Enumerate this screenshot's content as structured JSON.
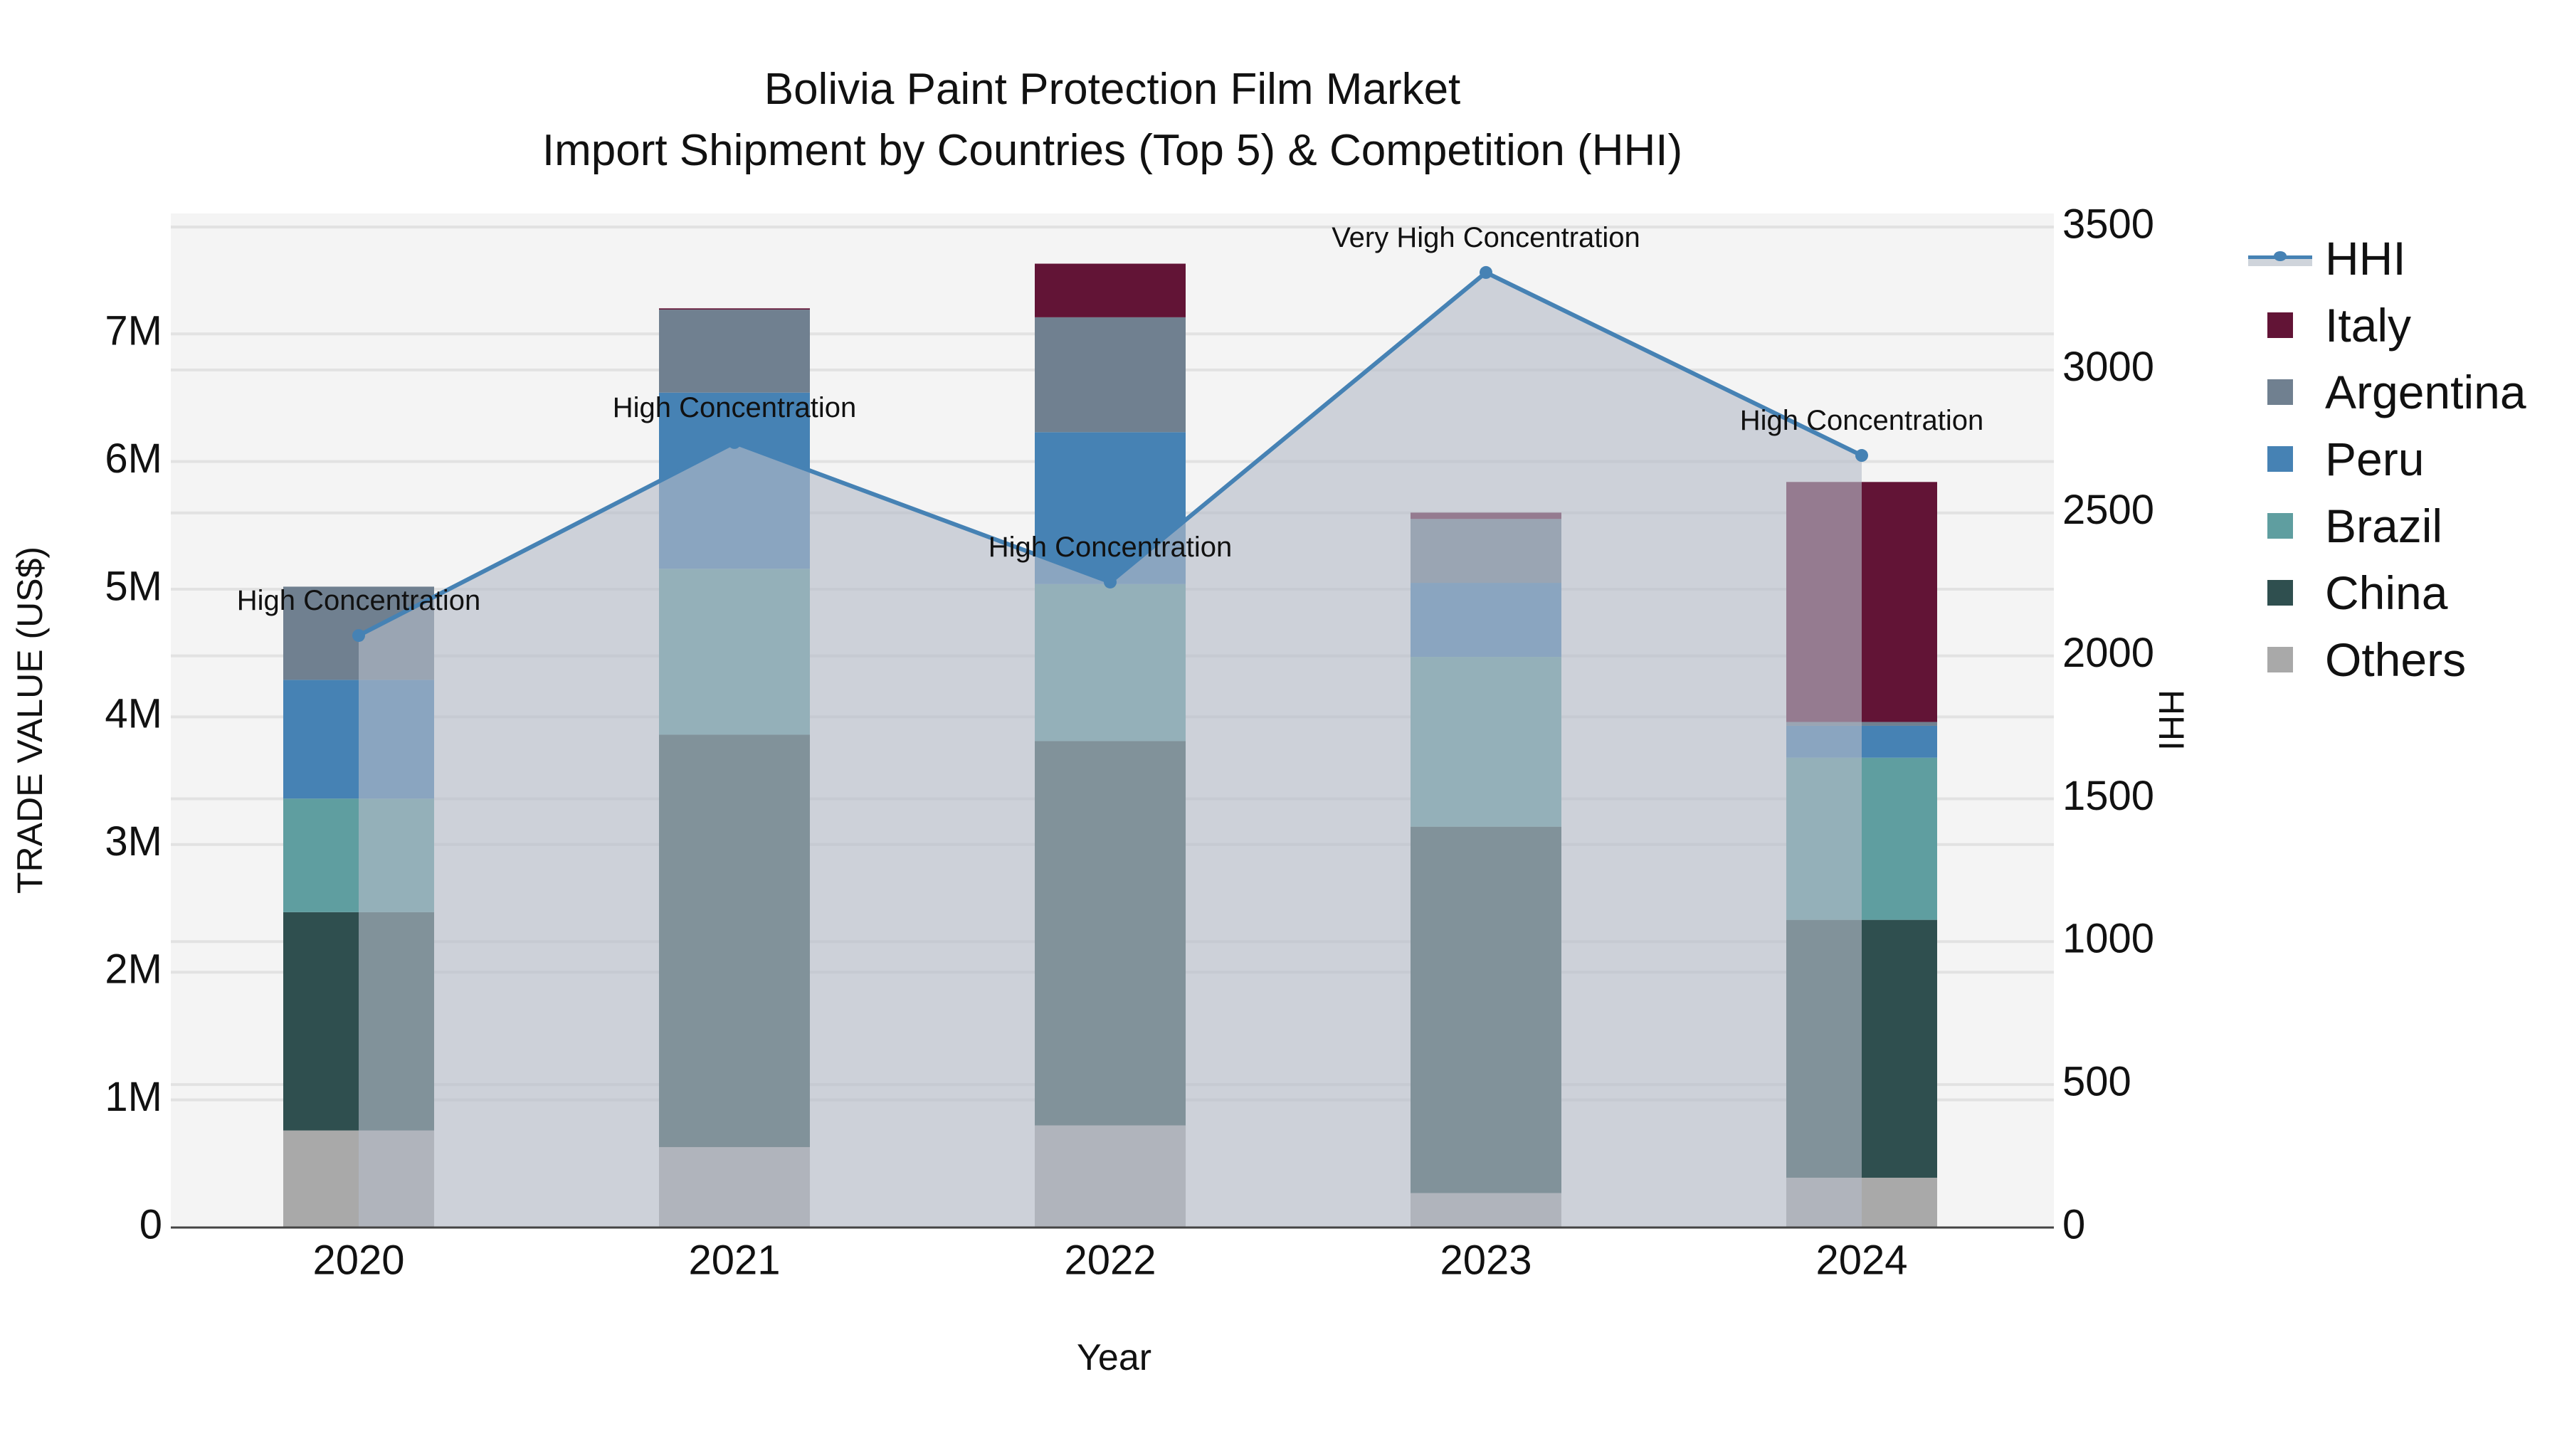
{
  "chart_title": {
    "line1": "Bolivia Paint Protection Film Market",
    "line2": "Import Shipment by Countries (Top 5) & Competition (HHI)"
  },
  "axes": {
    "x_title": "Year",
    "y_left_title": "TRADE VALUE (US$)",
    "y_right_title": "HHI",
    "y_left_ticks": [
      "0",
      "1M",
      "2M",
      "3M",
      "4M",
      "5M",
      "6M",
      "7M"
    ],
    "y_right_ticks": [
      "0",
      "500",
      "1000",
      "1500",
      "2000",
      "2500",
      "3000",
      "3500"
    ]
  },
  "legend": {
    "items": [
      {
        "label": "HHI",
        "type": "line",
        "color": "#4682b4"
      },
      {
        "label": "Italy",
        "type": "bar",
        "color": "#621436"
      },
      {
        "label": "Argentina",
        "type": "bar",
        "color": "#708090"
      },
      {
        "label": "Peru",
        "type": "bar",
        "color": "#4682b4"
      },
      {
        "label": "Brazil",
        "type": "bar",
        "color": "#5f9ea0"
      },
      {
        "label": "China",
        "type": "bar",
        "color": "#2f4f4f"
      },
      {
        "label": "Others",
        "type": "bar",
        "color": "#a9a9a9"
      }
    ]
  },
  "colors": {
    "plot_bg": "#f4f4f4",
    "grid": "#e2e2e2",
    "hhi_line": "#4682b4",
    "hhi_fill": "rgba(180,188,200,0.62)",
    "axis_line": "#444444"
  },
  "chart_data": {
    "type": "bar",
    "stacked": true,
    "title": "Bolivia Paint Protection Film Market — Import Shipment by Countries (Top 5) & Competition (HHI)",
    "xlabel": "Year",
    "ylabel": "TRADE VALUE (US$)",
    "y2label": "HHI",
    "categories": [
      "2020",
      "2021",
      "2022",
      "2023",
      "2024"
    ],
    "ylim": [
      0,
      7.9
    ],
    "ylim_units": "millions US$",
    "y2lim": [
      0,
      3550
    ],
    "grid": true,
    "legend_position": "right",
    "series": [
      {
        "name": "Others",
        "type": "bar",
        "color": "#a9a9a9",
        "values": [
          0.76,
          0.63,
          0.8,
          0.27,
          0.39
        ]
      },
      {
        "name": "China",
        "type": "bar",
        "color": "#2f4f4f",
        "values": [
          1.71,
          3.23,
          3.01,
          2.87,
          2.02
        ]
      },
      {
        "name": "Brazil",
        "type": "bar",
        "color": "#5f9ea0",
        "values": [
          0.89,
          1.3,
          1.23,
          1.33,
          1.27
        ]
      },
      {
        "name": "Peru",
        "type": "bar",
        "color": "#4682b4",
        "values": [
          0.93,
          1.38,
          1.19,
          0.58,
          0.25
        ]
      },
      {
        "name": "Argentina",
        "type": "bar",
        "color": "#708090",
        "values": [
          0.73,
          0.65,
          0.9,
          0.5,
          0.03
        ]
      },
      {
        "name": "Italy",
        "type": "bar",
        "color": "#621436",
        "values": [
          0.0,
          0.01,
          0.42,
          0.05,
          1.88
        ]
      },
      {
        "name": "HHI",
        "type": "area-line",
        "axis": "right",
        "color": "#4682b4",
        "values": [
          2071,
          2746,
          2258,
          3341,
          2701
        ]
      }
    ],
    "annotations": [
      {
        "x": "2020",
        "text": "High Concentration"
      },
      {
        "x": "2021",
        "text": "High Concentration"
      },
      {
        "x": "2022",
        "text": "High Concentration"
      },
      {
        "x": "2023",
        "text": "Very High Concentration"
      },
      {
        "x": "2024",
        "text": "High Concentration"
      }
    ]
  }
}
